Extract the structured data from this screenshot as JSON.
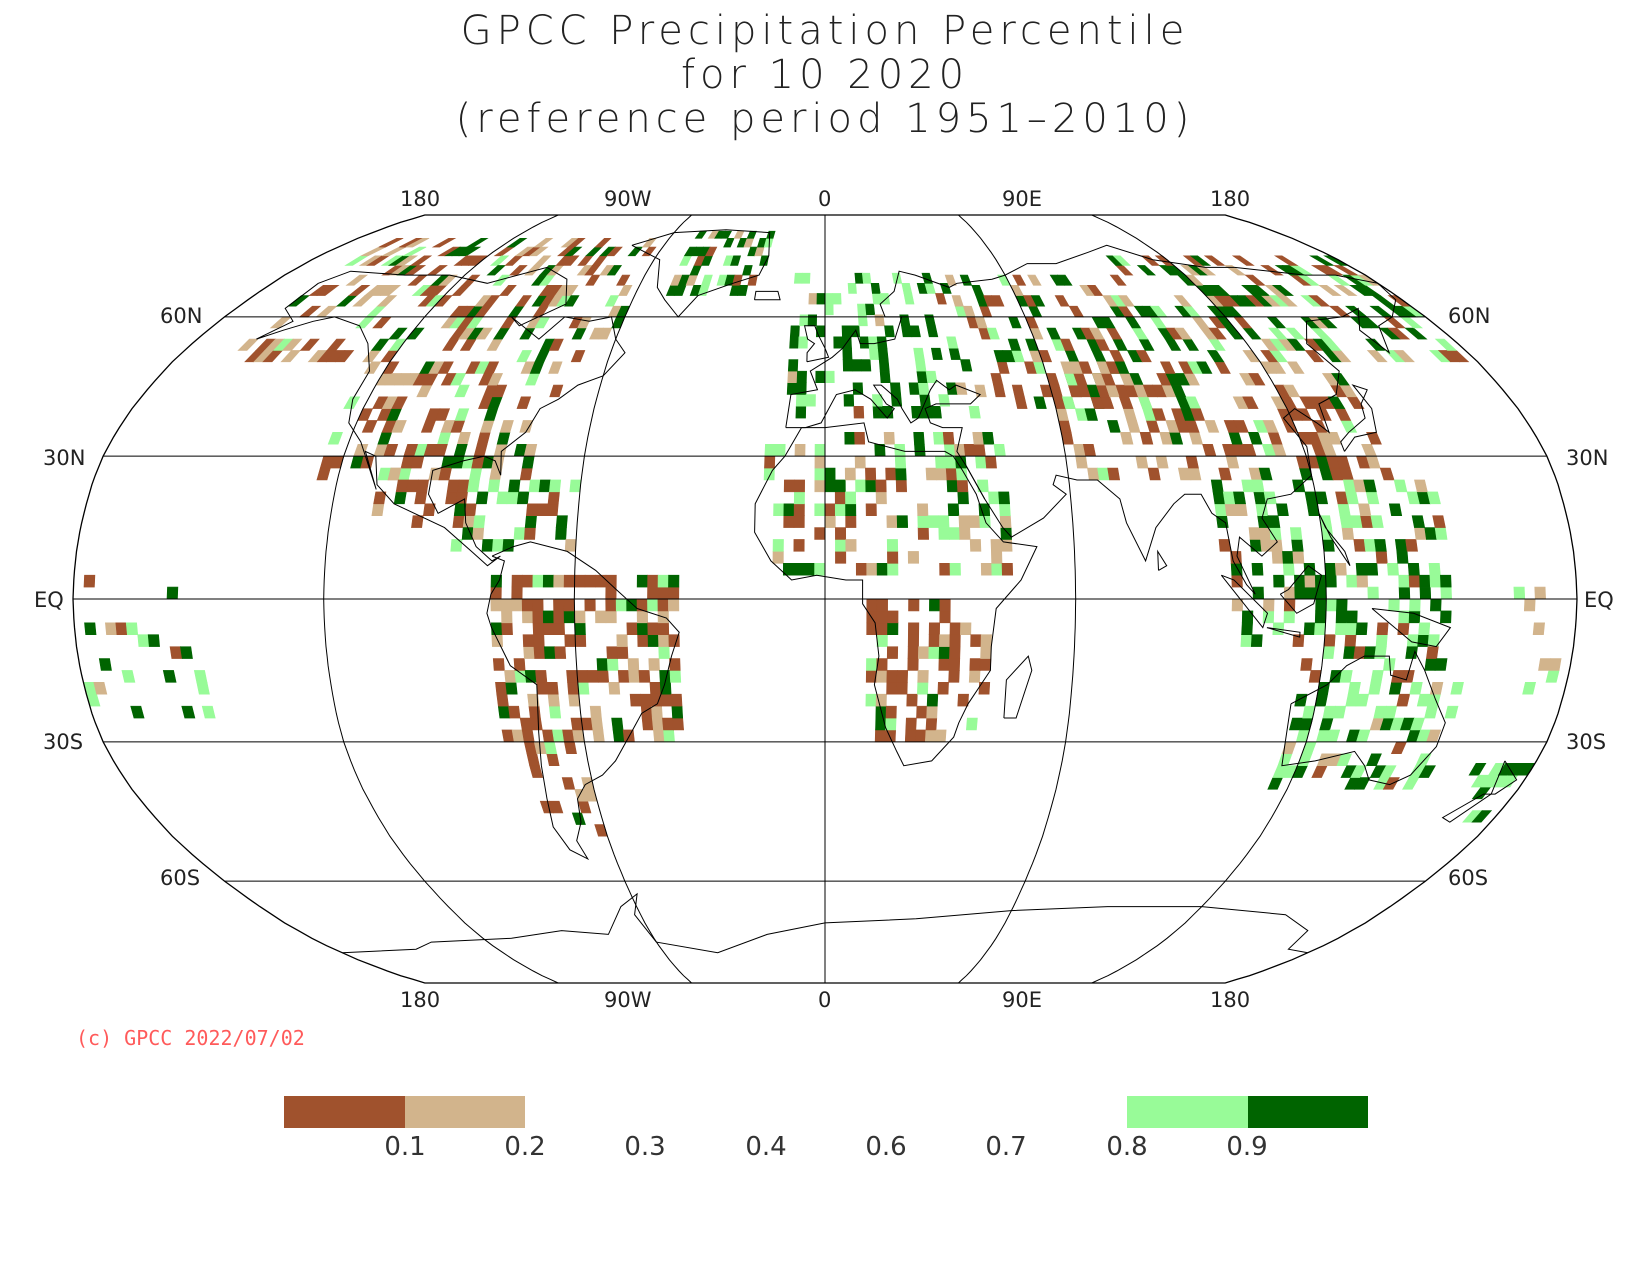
{
  "title": {
    "line1": "GPCC Precipitation Percentile",
    "line2": "for 10 2020",
    "line3": "(reference period 1951–2010)"
  },
  "map": {
    "projection": "robinson",
    "lon_labels_top": [
      "180",
      "90W",
      "0",
      "90E",
      "180"
    ],
    "lon_labels_bottom": [
      "180",
      "90W",
      "0",
      "90E",
      "180"
    ],
    "lat_labels_left": [
      "60N",
      "30N",
      "EQ",
      "30S",
      "60S"
    ],
    "lat_labels_right": [
      "60N",
      "30N",
      "EQ",
      "30S",
      "60S"
    ],
    "colors": {
      "below_0_1": "#a0522d",
      "0_1_to_0_2": "#d2b48c",
      "0_8_to_0_9": "#98fb98",
      "above_0_9": "#006400",
      "coastline": "#000000",
      "grid": "#000000"
    }
  },
  "credit": "(c) GPCC 2022/07/02",
  "colorbar": {
    "segments": [
      {
        "color": "#a0522d",
        "range": "<0.1"
      },
      {
        "color": "#d2b48c",
        "range": "0.1–0.2"
      },
      {
        "color": "#ffffff",
        "range": "0.2–0.8"
      },
      {
        "color": "#98fb98",
        "range": "0.8–0.9"
      },
      {
        "color": "#006400",
        "range": ">0.9"
      }
    ],
    "ticks": [
      "0.1",
      "0.2",
      "0.3",
      "0.4",
      "0.6",
      "0.7",
      "0.8",
      "0.9"
    ]
  }
}
